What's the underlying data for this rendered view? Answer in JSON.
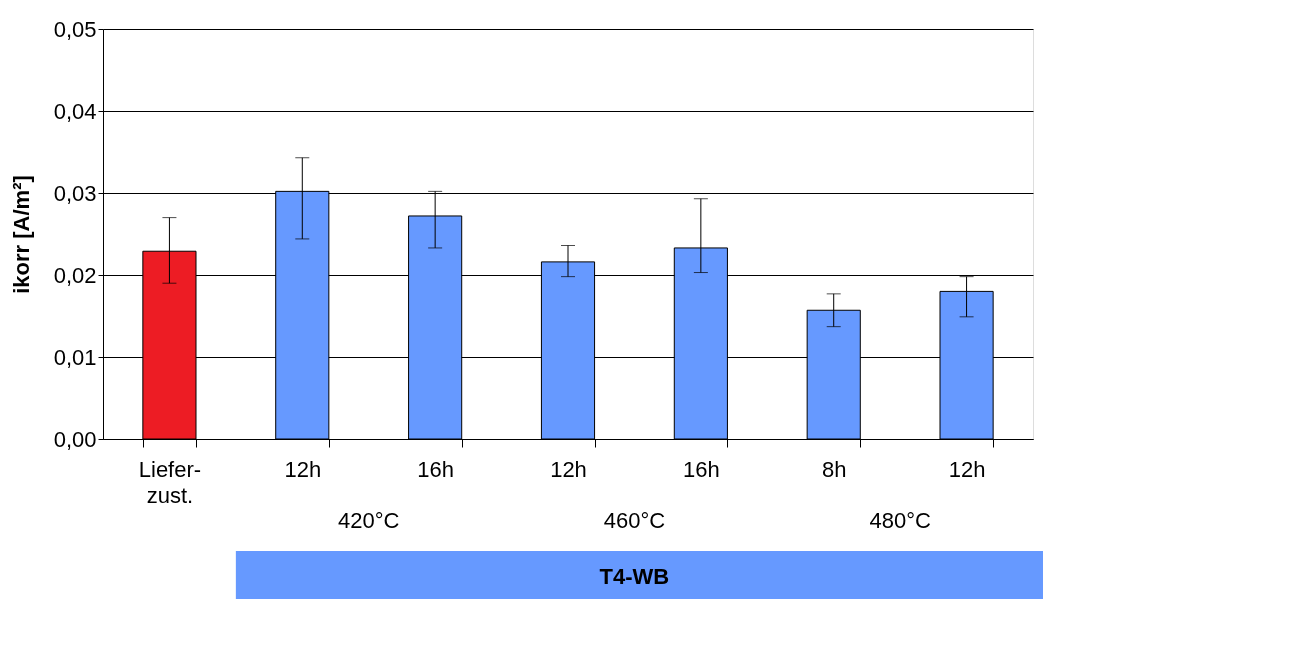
{
  "chart_data": {
    "type": "bar",
    "categories": [
      "Liefer-\nzust.",
      "12h",
      "16h",
      "12h",
      "16h",
      "8h",
      "12h"
    ],
    "values": [
      0.0229,
      0.0302,
      0.0272,
      0.0216,
      0.0233,
      0.0157,
      0.018
    ],
    "colors": [
      "#ed1c24",
      "#6699ff",
      "#6699ff",
      "#6699ff",
      "#6699ff",
      "#6699ff",
      "#6699ff"
    ],
    "errors": [
      [
        0.019,
        0.027
      ],
      [
        0.0244,
        0.0343
      ],
      [
        0.0233,
        0.0302
      ],
      [
        0.0198,
        0.0236
      ],
      [
        0.0203,
        0.0293
      ],
      [
        0.0137,
        0.0177
      ],
      [
        0.0149,
        0.0198
      ]
    ],
    "ylabel": "ikorr [A/m²]",
    "ylim": [
      0,
      0.05
    ],
    "yticks": [
      {
        "value": 0,
        "label": "0,00"
      },
      {
        "value": 0.01,
        "label": "0,01"
      },
      {
        "value": 0.02,
        "label": "0,02"
      },
      {
        "value": 0.03,
        "label": "0,03"
      },
      {
        "value": 0.04,
        "label": "0,04"
      },
      {
        "value": 0.05,
        "label": "0,05"
      }
    ],
    "grid": "y",
    "annotations": [
      "420°C",
      "460°C",
      "480°C",
      "T4-WB"
    ]
  }
}
